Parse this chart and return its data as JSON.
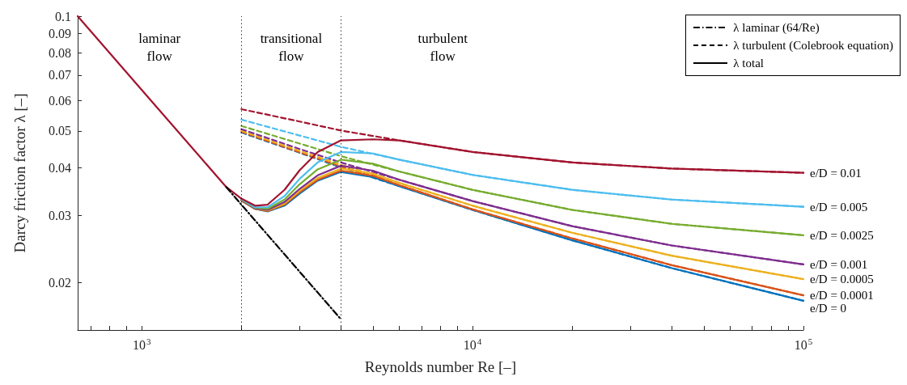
{
  "chart_data": {
    "type": "line",
    "xlabel": "Reynolds number Re [–]",
    "ylabel": "Darcy friction factor λ [–]",
    "log": "xy",
    "grid": false,
    "marker": "none",
    "legend": "top right",
    "xlim": [
      640,
      100000
    ],
    "ylim": [
      0.015,
      0.1
    ],
    "xticks": [
      {
        "value": 700,
        "label": null
      },
      {
        "value": 800,
        "label": null
      },
      {
        "value": 900,
        "label": null
      },
      {
        "value": 1000,
        "label": "10$^{3}$"
      },
      {
        "value": 2000,
        "label": null
      },
      {
        "value": 3000,
        "label": null
      },
      {
        "value": 4000,
        "label": null
      },
      {
        "value": 5000,
        "label": null
      },
      {
        "value": 6000,
        "label": null
      },
      {
        "value": 7000,
        "label": null
      },
      {
        "value": 8000,
        "label": null
      },
      {
        "value": 9000,
        "label": null
      },
      {
        "value": 10000,
        "label": "10$^{4}$"
      },
      {
        "value": 20000,
        "label": null
      },
      {
        "value": 30000,
        "label": null
      },
      {
        "value": 40000,
        "label": null
      },
      {
        "value": 50000,
        "label": null
      },
      {
        "value": 60000,
        "label": null
      },
      {
        "value": 70000,
        "label": null
      },
      {
        "value": 80000,
        "label": null
      },
      {
        "value": 90000,
        "label": null
      },
      {
        "value": 100000,
        "label": "10$^{5}$"
      }
    ],
    "yticks": [
      0.02,
      0.03,
      0.04,
      0.05,
      0.06,
      0.07,
      0.08,
      0.09,
      0.1
    ],
    "ref_lines": [
      {
        "axis": "x",
        "value": 2000,
        "color": "#000000",
        "line_style": "dotted"
      },
      {
        "axis": "x",
        "value": 4000,
        "color": "#000000",
        "line_style": "dotted"
      }
    ],
    "annotations": [
      "laminar\nflow",
      "transitional\nflow",
      "turbulent\nflow",
      "λ turbulent (Colebrook equation)",
      "λ total"
    ],
    "series": [
      {
        "type": "line",
        "line_style": "dashed",
        "color": "#0072bd",
        "x": [
          2000,
          3000,
          4000,
          6000,
          10000,
          20000,
          40000,
          100000
        ],
        "values": [
          0.0495,
          0.0438,
          0.0401,
          0.0358,
          0.031,
          0.0258,
          0.0218,
          0.0179
        ]
      },
      {
        "type": "line",
        "line_style": "dashed",
        "color": "#d95319",
        "x": [
          2000,
          3000,
          4000,
          6000,
          10000,
          20000,
          40000,
          100000
        ],
        "values": [
          0.0497,
          0.0439,
          0.0403,
          0.036,
          0.0311,
          0.0261,
          0.0222,
          0.0185
        ]
      },
      {
        "type": "line",
        "line_style": "dashed",
        "color": "#edb120",
        "x": [
          2000,
          3000,
          4000,
          6000,
          10000,
          20000,
          40000,
          100000
        ],
        "values": [
          0.05,
          0.0443,
          0.0407,
          0.0365,
          0.0318,
          0.027,
          0.0235,
          0.0204
        ]
      },
      {
        "type": "line",
        "line_style": "dashed",
        "color": "#7e2f8e",
        "x": [
          2000,
          3000,
          4000,
          6000,
          10000,
          20000,
          40000,
          100000
        ],
        "values": [
          0.0505,
          0.0448,
          0.0413,
          0.0372,
          0.0327,
          0.0281,
          0.025,
          0.0223
        ]
      },
      {
        "type": "line",
        "line_style": "dashed",
        "color": "#77ac30",
        "x": [
          2000,
          3000,
          4000,
          6000,
          10000,
          20000,
          40000,
          100000
        ],
        "values": [
          0.0515,
          0.0463,
          0.0429,
          0.0391,
          0.035,
          0.031,
          0.0285,
          0.0266
        ]
      },
      {
        "type": "line",
        "line_style": "dashed",
        "color": "#4dbeee",
        "x": [
          2000,
          3000,
          4000,
          6000,
          10000,
          20000,
          40000,
          100000
        ],
        "values": [
          0.0535,
          0.0486,
          0.0454,
          0.042,
          0.0383,
          0.035,
          0.033,
          0.0316
        ]
      },
      {
        "type": "line",
        "line_style": "dashed",
        "color": "#a2142f",
        "x": [
          2000,
          3000,
          4000,
          6000,
          10000,
          20000,
          40000,
          100000
        ],
        "values": [
          0.057,
          0.0529,
          0.0501,
          0.0472,
          0.044,
          0.0413,
          0.0398,
          0.0388
        ]
      },
      {
        "type": "line",
        "line_style": "solid",
        "name": "e/D = 0",
        "color": "#0072bd",
        "x": [
          2000,
          2200,
          2400,
          2700,
          3000,
          3400,
          4000,
          5000,
          6000,
          10000,
          20000,
          40000,
          100000
        ],
        "values": [
          0.0328,
          0.0312,
          0.0307,
          0.0318,
          0.0342,
          0.037,
          0.039,
          0.0378,
          0.0358,
          0.031,
          0.0258,
          0.0218,
          0.0179
        ]
      },
      {
        "type": "line",
        "line_style": "solid",
        "name": "e/D = 0.0001",
        "color": "#d95319",
        "x": [
          2000,
          2200,
          2400,
          2700,
          3000,
          3400,
          4000,
          5000,
          6000,
          10000,
          20000,
          40000,
          100000
        ],
        "values": [
          0.0328,
          0.0312,
          0.0308,
          0.032,
          0.0345,
          0.0372,
          0.0393,
          0.0381,
          0.036,
          0.0311,
          0.0261,
          0.0222,
          0.0185
        ]
      },
      {
        "type": "line",
        "line_style": "solid",
        "name": "e/D = 0.0005",
        "color": "#edb120",
        "x": [
          2000,
          2200,
          2400,
          2700,
          3000,
          3400,
          4000,
          5000,
          6000,
          10000,
          20000,
          40000,
          100000
        ],
        "values": [
          0.0329,
          0.0313,
          0.0309,
          0.0322,
          0.0348,
          0.0376,
          0.0398,
          0.0386,
          0.0365,
          0.0318,
          0.027,
          0.0235,
          0.0204
        ]
      },
      {
        "type": "line",
        "line_style": "solid",
        "name": "e/D = 0.001",
        "color": "#7e2f8e",
        "x": [
          2000,
          2200,
          2400,
          2700,
          3000,
          3400,
          4000,
          5000,
          6000,
          10000,
          20000,
          40000,
          100000
        ],
        "values": [
          0.0329,
          0.0313,
          0.031,
          0.0325,
          0.0352,
          0.0382,
          0.0405,
          0.0393,
          0.0372,
          0.0327,
          0.0281,
          0.025,
          0.0223
        ]
      },
      {
        "type": "line",
        "line_style": "solid",
        "name": "e/D = 0.0025",
        "color": "#77ac30",
        "x": [
          2000,
          2200,
          2400,
          2700,
          3000,
          3400,
          4000,
          5000,
          6000,
          10000,
          20000,
          40000,
          100000
        ],
        "values": [
          0.033,
          0.0314,
          0.0312,
          0.033,
          0.0362,
          0.0396,
          0.042,
          0.041,
          0.0391,
          0.035,
          0.031,
          0.0285,
          0.0266
        ]
      },
      {
        "type": "line",
        "line_style": "solid",
        "name": "e/D = 0.005",
        "color": "#4dbeee",
        "x": [
          2000,
          2200,
          2400,
          2700,
          3000,
          3400,
          4000,
          5000,
          6000,
          10000,
          20000,
          40000,
          100000
        ],
        "values": [
          0.0331,
          0.0315,
          0.0315,
          0.0337,
          0.0374,
          0.0413,
          0.044,
          0.0436,
          0.042,
          0.0383,
          0.035,
          0.033,
          0.0316
        ]
      },
      {
        "type": "line",
        "line_style": "solid",
        "name": "e/D = 0.01",
        "color": "#a2142f",
        "x": [
          640,
          1000,
          1500,
          1800,
          2000,
          2200,
          2400,
          2700,
          3000,
          3400,
          4000,
          5000,
          6000,
          10000,
          20000,
          40000,
          100000
        ],
        "values": [
          0.1,
          0.064,
          0.0427,
          0.0356,
          0.0332,
          0.0318,
          0.032,
          0.035,
          0.0394,
          0.044,
          0.0472,
          0.0475,
          0.0472,
          0.044,
          0.0413,
          0.0398,
          0.0388
        ]
      },
      {
        "type": "line",
        "line_style": "dashdot",
        "name": "λ laminar (64/Re)",
        "color": "#000000",
        "x": [
          1800,
          2000,
          4000
        ],
        "values": [
          0.0356,
          0.032,
          0.016
        ]
      }
    ]
  }
}
